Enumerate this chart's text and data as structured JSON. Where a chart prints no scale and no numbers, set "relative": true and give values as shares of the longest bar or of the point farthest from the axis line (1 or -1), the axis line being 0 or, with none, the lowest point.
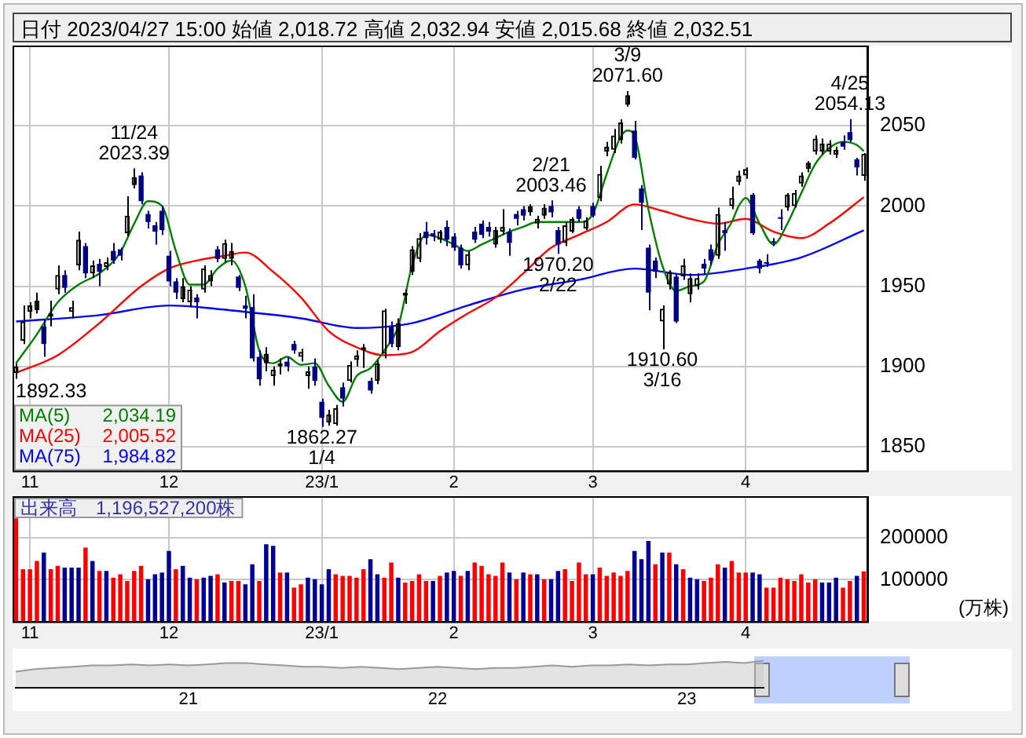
{
  "chart_data": [
    {
      "type": "candlestick",
      "title": "日付 2023/04/27 15:00 始値 2,018.72 高値 2,032.94 安値 2,015.68 終値 2,032.51",
      "categories": [
        null,
        null,
        "11",
        null,
        null,
        null,
        null,
        null,
        null,
        null,
        null,
        null,
        null,
        null,
        null,
        null,
        null,
        null,
        null,
        null,
        null,
        null,
        "12",
        null,
        null,
        null,
        null,
        null,
        null,
        null,
        null,
        null,
        null,
        null,
        null,
        null,
        null,
        null,
        null,
        null,
        null,
        null,
        null,
        null,
        "23/1",
        null,
        null,
        null,
        null,
        null,
        null,
        null,
        null,
        null,
        null,
        null,
        null,
        null,
        null,
        null,
        null,
        null,
        null,
        "2",
        null,
        null,
        null,
        null,
        null,
        null,
        null,
        null,
        null,
        null,
        null,
        null,
        null,
        null,
        null,
        null,
        null,
        null,
        null,
        "3",
        null,
        null,
        null,
        null,
        null,
        null,
        null,
        null,
        null,
        null,
        null,
        null,
        null,
        null,
        null,
        null,
        null,
        null,
        null,
        null,
        null,
        "4",
        null,
        null,
        null,
        null,
        null,
        null,
        null,
        null,
        null,
        null,
        null,
        null,
        null,
        null,
        null,
        null,
        null
      ],
      "ohlc": [
        [
          1896,
          1902,
          1892.33,
          1900
        ],
        [
          1916,
          1938,
          1914,
          1928
        ],
        [
          1934,
          1940,
          1930,
          1938
        ],
        [
          1935,
          1946,
          1933,
          1941
        ],
        [
          1925,
          1929,
          1906,
          1914
        ],
        [
          1931,
          1941,
          1925,
          1933
        ],
        [
          1948,
          1963,
          1945,
          1957
        ],
        [
          1957,
          1960,
          1946,
          1949
        ],
        [
          1934,
          1941,
          1930,
          1937
        ],
        [
          1963,
          1984,
          1960,
          1979
        ],
        [
          1975,
          1977,
          1955,
          1958
        ],
        [
          1958,
          1966,
          1955,
          1963
        ],
        [
          1964,
          1967,
          1950,
          1959
        ],
        [
          1962,
          1968,
          1960,
          1965
        ],
        [
          1972,
          1977,
          1964,
          1966
        ],
        [
          1973,
          1974,
          1966,
          1969
        ],
        [
          1983,
          2006,
          1981,
          1994
        ],
        [
          2013,
          2023.39,
          2011,
          2018
        ],
        [
          2019,
          2021,
          2001,
          2003
        ],
        [
          1995,
          1997,
          1986,
          1990
        ],
        [
          1988,
          1990,
          1976,
          1984
        ],
        [
          1997,
          2000,
          1982,
          1985
        ],
        [
          1969,
          1972,
          1950,
          1953
        ],
        [
          1953,
          1955,
          1942,
          1946
        ],
        [
          1942,
          1955,
          1940,
          1950
        ],
        [
          1940,
          1950,
          1937,
          1948
        ],
        [
          1943,
          1945,
          1930,
          1940
        ],
        [
          1948,
          1963,
          1946,
          1961
        ],
        [
          1953,
          1960,
          1950,
          1957
        ],
        [
          1973,
          1975,
          1965,
          1967
        ],
        [
          1967,
          1979,
          1965,
          1977
        ],
        [
          1967,
          1977,
          1963,
          1972
        ],
        [
          1956,
          1957,
          1947,
          1949
        ],
        [
          1938,
          1944,
          1930,
          1936
        ],
        [
          1937,
          1945,
          1903,
          1905
        ],
        [
          1906,
          1910,
          1888,
          1892
        ],
        [
          1902,
          1912,
          1897,
          1908
        ],
        [
          1894,
          1900,
          1888,
          1898
        ],
        [
          1900,
          1905,
          1895,
          1902
        ],
        [
          1903,
          1906,
          1897,
          1900
        ],
        [
          1914,
          1916,
          1908,
          1910
        ],
        [
          1906,
          1911,
          1903,
          1909
        ],
        [
          1894,
          1900,
          1886,
          1897
        ],
        [
          1900,
          1905,
          1888,
          1891
        ],
        [
          1878,
          1880,
          1862.27,
          1868
        ],
        [
          1865,
          1873,
          1863,
          1870
        ],
        [
          1864,
          1876,
          1863,
          1874
        ],
        [
          1887,
          1890,
          1875,
          1880
        ],
        [
          1891,
          1903,
          1890,
          1901
        ],
        [
          1904,
          1910,
          1900,
          1907
        ],
        [
          1910,
          1914,
          1899,
          1912
        ],
        [
          1891,
          1893,
          1883,
          1885
        ],
        [
          1891,
          1904,
          1889,
          1902
        ],
        [
          1908,
          1936,
          1905,
          1935
        ],
        [
          1925,
          1928,
          1912,
          1914
        ],
        [
          1912,
          1930,
          1910,
          1927
        ],
        [
          1944,
          1948,
          1939,
          1946
        ],
        [
          1959,
          1975,
          1957,
          1973
        ],
        [
          1967,
          1983,
          1965,
          1980
        ],
        [
          1984,
          1990,
          1976,
          1980
        ],
        [
          1983,
          1985,
          1978,
          1981
        ],
        [
          1979,
          1985,
          1977,
          1984
        ],
        [
          1987,
          1991,
          1975,
          1979
        ],
        [
          1981,
          1983,
          1972,
          1974
        ],
        [
          1974,
          1976,
          1961,
          1963
        ],
        [
          1963,
          1972,
          1960,
          1970
        ],
        [
          1984,
          1987,
          1977,
          1979
        ],
        [
          1989,
          1991,
          1980,
          1982
        ],
        [
          1987,
          1990,
          1981,
          1984
        ],
        [
          1976,
          1987,
          1974,
          1985
        ],
        [
          1984,
          1998,
          1982,
          1987
        ],
        [
          1984,
          1986,
          1969,
          1977
        ],
        [
          1995,
          1997,
          1988,
          1992
        ],
        [
          1998,
          2000,
          1991,
          1994
        ],
        [
          1996,
          2001,
          1994,
          2000
        ],
        [
          1989,
          1994,
          1986,
          1992
        ],
        [
          1994,
          2001,
          1992,
          1999
        ],
        [
          2000,
          2003.46,
          1993,
          1996
        ],
        [
          1985,
          1987,
          1970.2,
          1976
        ],
        [
          1977,
          1990,
          1975,
          1988
        ],
        [
          1984,
          1993,
          1983,
          1992
        ],
        [
          1998,
          2000,
          1990,
          1992
        ],
        [
          1986,
          1993,
          1985,
          1991
        ],
        [
          2000,
          2002,
          1993,
          1994
        ],
        [
          2005,
          2025,
          2003,
          2020
        ],
        [
          2034,
          2040,
          2031,
          2037
        ],
        [
          2035,
          2048,
          2033,
          2044
        ],
        [
          2041,
          2054,
          2039,
          2052
        ],
        [
          2063,
          2071.6,
          2062,
          2069
        ],
        [
          2047,
          2053,
          2029,
          2030
        ],
        [
          2011,
          2013,
          1985,
          2002
        ],
        [
          1974,
          1976,
          1935,
          1946
        ],
        [
          1966,
          1968,
          1955,
          1959
        ],
        [
          1928,
          1938,
          1910.6,
          1936
        ],
        [
          1951,
          1960,
          1948,
          1959
        ],
        [
          1956,
          1958,
          1927,
          1928
        ],
        [
          1956,
          1967,
          1954,
          1963
        ],
        [
          1945,
          1958,
          1940,
          1955
        ],
        [
          1950,
          1958,
          1948,
          1955
        ],
        [
          1964,
          1967,
          1957,
          1961
        ],
        [
          1973,
          1976,
          1963,
          1966
        ],
        [
          1969,
          1999,
          1967,
          1995
        ],
        [
          1985,
          1990,
          1972,
          1983
        ],
        [
          2000,
          2012,
          1998,
          2005
        ],
        [
          2015,
          2022,
          2013,
          2019
        ],
        [
          2019,
          2024,
          2017,
          2023
        ],
        [
          2007,
          2008,
          1982,
          1983
        ],
        [
          1966,
          1967,
          1958,
          1961
        ],
        [
          1965,
          1970,
          1962,
          1964
        ],
        [
          1978,
          1980,
          1975,
          1977
        ],
        [
          1993,
          1998,
          1985,
          1992
        ],
        [
          1999,
          2008,
          1997,
          2007
        ],
        [
          2000,
          2010,
          1999,
          2008
        ],
        [
          2014,
          2021,
          2012,
          2019
        ],
        [
          2023,
          2028,
          2021,
          2027
        ],
        [
          2034,
          2044,
          2032,
          2042
        ],
        [
          2034,
          2042,
          2032,
          2039
        ],
        [
          2034,
          2041,
          2032,
          2039
        ],
        [
          2032,
          2037,
          2030,
          2035
        ],
        [
          2040,
          2044,
          2035,
          2037
        ],
        [
          2046,
          2054.13,
          2040,
          2041
        ],
        [
          2029,
          2030,
          2019,
          2024
        ],
        [
          2018.72,
          2032.94,
          2015.68,
          2032.51
        ]
      ],
      "colors": [
        "#000000",
        "#000000",
        "#000000",
        "#000000",
        "#000080",
        "#000000",
        "#000000",
        "#000080",
        "#000000",
        "#000000",
        "#000080",
        "#000000",
        "#000080",
        "#000000",
        "#000080",
        "#000080",
        "#000000",
        "#000000",
        "#000080",
        "#000080",
        "#000080",
        "#000080",
        "#000080",
        "#000080",
        "#000000",
        "#000000",
        "#000080",
        "#000000",
        "#000000",
        "#000080",
        "#000000",
        "#000000",
        "#000080",
        "#000080",
        "#000080",
        "#000080",
        "#000000",
        "#000000",
        "#000000",
        "#000080",
        "#000080",
        "#000000",
        "#000000",
        "#000080",
        "#000080",
        "#000000",
        "#000000",
        "#000080",
        "#000000",
        "#000000",
        "#000000",
        "#000080",
        "#000000",
        "#000000",
        "#000080",
        "#000000",
        "#000000",
        "#000000",
        "#000000",
        "#000080",
        "#000080",
        "#000000",
        "#000080",
        "#000080",
        "#000080",
        "#000000",
        "#000080",
        "#000080",
        "#000080",
        "#000000",
        "#000000",
        "#000080",
        "#000080",
        "#000080",
        "#000000",
        "#000000",
        "#000000",
        "#000080",
        "#000080",
        "#000000",
        "#000000",
        "#000080",
        "#000000",
        "#000080",
        "#000000",
        "#000000",
        "#000000",
        "#000000",
        "#000000",
        "#000080",
        "#000080",
        "#000080",
        "#000080",
        "#000000",
        "#000000",
        "#000080",
        "#000000",
        "#000000",
        "#000000",
        "#000080",
        "#000080",
        "#000000",
        "#000080",
        "#000000",
        "#000000",
        "#000000",
        "#000080",
        "#000080",
        "#000080",
        "#000080",
        "#000080",
        "#000000",
        "#000000",
        "#000000",
        "#000000",
        "#000000",
        "#000000",
        "#000000",
        "#000000",
        "#000080",
        "#000080",
        "#000080",
        "#000000"
      ],
      "series": [
        {
          "type": "line",
          "name": "MA(5)",
          "color": "#008000",
          "values": [
            1902,
            null,
            null,
            1920,
            null,
            null,
            1940,
            null,
            null,
            1951,
            null,
            null,
            1958,
            null,
            null,
            1971,
            null,
            1989,
            null,
            2003,
            null,
            2000,
            null,
            1972,
            null,
            1951,
            null,
            1951,
            null,
            1961,
            null,
            1966,
            null,
            1950,
            null,
            1910,
            null,
            1902,
            null,
            1906,
            null,
            1901,
            null,
            1902,
            null,
            1888,
            null,
            1878,
            null,
            1894,
            null,
            1899,
            null,
            1910,
            null,
            1925,
            null,
            1963,
            null,
            1982,
            null,
            1980,
            null,
            1976,
            null,
            1972,
            null,
            1976,
            null,
            1980,
            null,
            1984,
            null,
            1987,
            null,
            1990,
            null,
            1990,
            null,
            1990,
            null,
            1990,
            null,
            1995,
            null,
            2020,
            null,
            2043,
            2047,
            2044,
            null,
            1998,
            null,
            1963,
            null,
            1947,
            null,
            1950,
            null,
            1953,
            null,
            1976,
            null,
            1990,
            2000,
            2005,
            null,
            1989,
            null,
            1976,
            null,
            1989,
            null,
            2008,
            null,
            2026,
            null,
            2036,
            null,
            2040,
            null,
            2038,
            2034.19
          ]
        },
        {
          "type": "line",
          "name": "MA(25)",
          "color": "#ff0000",
          "values": [
            1896,
            null,
            null,
            null,
            null,
            null,
            1907,
            null,
            null,
            null,
            null,
            null,
            1927,
            null,
            null,
            null,
            null,
            null,
            1950,
            null,
            null,
            null,
            1961,
            null,
            null,
            null,
            1966,
            null,
            null,
            null,
            1969,
            null,
            null,
            1971,
            null,
            null,
            null,
            1959,
            null,
            null,
            null,
            1943,
            null,
            null,
            null,
            1922,
            null,
            null,
            null,
            1912,
            null,
            null,
            null,
            1907,
            null,
            null,
            null,
            1909,
            null,
            null,
            null,
            1922,
            null,
            null,
            null,
            1933,
            null,
            null,
            null,
            1943,
            null,
            null,
            null,
            1958,
            null,
            null,
            null,
            1974,
            null,
            null,
            null,
            1982,
            null,
            null,
            null,
            1990,
            null,
            null,
            null,
            2001,
            null,
            null,
            null,
            1997,
            null,
            null,
            null,
            1992,
            null,
            null,
            null,
            1989,
            null,
            null,
            null,
            1992,
            null,
            null,
            null,
            1984,
            null,
            null,
            null,
            1980,
            null,
            null,
            null,
            1989,
            null,
            null,
            null,
            null,
            2005.52
          ]
        },
        {
          "type": "line",
          "name": "MA(75)",
          "color": "#0000ff",
          "values": [
            1928,
            null,
            null,
            null,
            null,
            null,
            null,
            null,
            null,
            null,
            null,
            null,
            1932,
            null,
            null,
            null,
            null,
            null,
            null,
            null,
            null,
            null,
            1938,
            null,
            null,
            null,
            null,
            null,
            null,
            null,
            null,
            null,
            null,
            1934,
            null,
            null,
            null,
            null,
            null,
            null,
            null,
            1930,
            null,
            null,
            null,
            null,
            null,
            null,
            null,
            1924,
            null,
            null,
            null,
            null,
            null,
            null,
            null,
            1927,
            null,
            null,
            null,
            null,
            null,
            null,
            null,
            1938,
            null,
            null,
            null,
            null,
            null,
            null,
            null,
            1948,
            null,
            null,
            null,
            null,
            null,
            null,
            null,
            1954,
            null,
            null,
            null,
            null,
            null,
            null,
            null,
            1961,
            null,
            null,
            null,
            null,
            null,
            null,
            null,
            1957,
            null,
            null,
            null,
            null,
            null,
            null,
            null,
            1961,
            null,
            null,
            null,
            null,
            null,
            null,
            null,
            1968,
            null,
            null,
            null,
            null,
            null,
            null,
            null,
            null,
            1984.82
          ]
        }
      ],
      "ylim": [
        1835,
        2100
      ],
      "yticks": [
        1850,
        1900,
        1950,
        2000,
        2050
      ],
      "grid": true,
      "legend": "bottom left",
      "marker": "none",
      "annotations": [
        {
          "text": "11/24\n2023.39",
          "y": 2023.39
        },
        {
          "text": "1862.27\n1/4",
          "y": 1862.27
        },
        {
          "text": "2/21\n2003.46",
          "y": 2003.46
        },
        {
          "text": "1970.20\n2/22",
          "y": 1970.2
        },
        {
          "text": "3/9\n2071.60",
          "y": 2071.6
        },
        {
          "text": "1910.60\n3/16",
          "y": 1910.6
        },
        {
          "text": "4/25\n2054.13",
          "y": 2054.13
        },
        "1892.33",
        "2,034.19",
        "2,005.52",
        "1,984.82"
      ]
    },
    {
      "type": "bar",
      "title": "出来高　1,196,527,200株",
      "ylabel": "(万株)",
      "categories": [
        null,
        null,
        "11",
        null,
        null,
        null,
        null,
        null,
        null,
        null,
        null,
        null,
        null,
        null,
        null,
        null,
        null,
        null,
        null,
        null,
        null,
        null,
        "12",
        null,
        null,
        null,
        null,
        null,
        null,
        null,
        null,
        null,
        null,
        null,
        null,
        null,
        null,
        null,
        null,
        null,
        null,
        null,
        null,
        null,
        "23/1",
        null,
        null,
        null,
        null,
        null,
        null,
        null,
        null,
        null,
        null,
        null,
        null,
        null,
        null,
        null,
        null,
        null,
        null,
        "2",
        null,
        null,
        null,
        null,
        null,
        null,
        null,
        null,
        null,
        null,
        null,
        null,
        null,
        null,
        null,
        null,
        null,
        null,
        null,
        "3",
        null,
        null,
        null,
        null,
        null,
        null,
        null,
        null,
        null,
        null,
        null,
        null,
        null,
        null,
        null,
        null,
        null,
        null,
        null,
        null,
        null,
        "4",
        null,
        null,
        null,
        null,
        null,
        null,
        null,
        null,
        null,
        null,
        null,
        null,
        null,
        null,
        null,
        null,
        null
      ],
      "values": [
        247000,
        125000,
        125000,
        145000,
        165000,
        125000,
        133000,
        129000,
        129000,
        129000,
        177000,
        145000,
        121000,
        121000,
        105000,
        113000,
        97000,
        121000,
        133000,
        101000,
        113000,
        117000,
        169000,
        125000,
        133000,
        105000,
        101000,
        105000,
        109000,
        113000,
        93000,
        97000,
        97000,
        89000,
        137000,
        97000,
        185000,
        181000,
        117000,
        117000,
        81000,
        89000,
        105000,
        101000,
        89000,
        125000,
        113000,
        109000,
        109000,
        105000,
        125000,
        149000,
        113000,
        105000,
        141000,
        105000,
        93000,
        97000,
        113000,
        97000,
        97000,
        109000,
        117000,
        121000,
        109000,
        121000,
        141000,
        133000,
        113000,
        109000,
        141000,
        117000,
        101000,
        117000,
        113000,
        113000,
        101000,
        101000,
        121000,
        125000,
        97000,
        141000,
        113000,
        113000,
        129000,
        109000,
        117000,
        109000,
        121000,
        169000,
        149000,
        193000,
        137000,
        165000,
        165000,
        137000,
        125000,
        105000,
        101000,
        97000,
        105000,
        137000,
        129000,
        145000,
        117000,
        117000,
        117000,
        113000,
        81000,
        81000,
        105000,
        101000,
        97000,
        113000,
        93000,
        101000,
        93000,
        93000,
        105000,
        81000,
        97000,
        109000,
        120000
      ],
      "colors": [
        "#ff0000",
        "#ff0000",
        "#ff0000",
        "#ff0000",
        "#000099",
        "#ff0000",
        "#ff0000",
        "#000099",
        "#000099",
        "#000099",
        "#ff0000",
        "#000099",
        "#ff0000",
        "#000099",
        "#ff0000",
        "#ff0000",
        "#ff0000",
        "#ff0000",
        "#ff0000",
        "#000099",
        "#000099",
        "#000099",
        "#000099",
        "#ff0000",
        "#000099",
        "#000099",
        "#ff0000",
        "#000099",
        "#000099",
        "#ff0000",
        "#000099",
        "#ff0000",
        "#ff0000",
        "#000099",
        "#000099",
        "#ff0000",
        "#000099",
        "#000099",
        "#ff0000",
        "#000099",
        "#ff0000",
        "#ff0000",
        "#000099",
        "#000099",
        "#000099",
        "#000099",
        "#ff0000",
        "#ff0000",
        "#ff0000",
        "#ff0000",
        "#ff0000",
        "#000099",
        "#000099",
        "#ff0000",
        "#ff0000",
        "#000099",
        "#ff0000",
        "#ff0000",
        "#ff0000",
        "#ff0000",
        "#000099",
        "#ff0000",
        "#000099",
        "#000099",
        "#ff0000",
        "#000099",
        "#ff0000",
        "#ff0000",
        "#ff0000",
        "#ff0000",
        "#ff0000",
        "#000099",
        "#ff0000",
        "#000099",
        "#ff0000",
        "#000099",
        "#ff0000",
        "#000099",
        "#000099",
        "#ff0000",
        "#ff0000",
        "#ff0000",
        "#ff0000",
        "#000099",
        "#ff0000",
        "#ff0000",
        "#ff0000",
        "#ff0000",
        "#ff0000",
        "#000099",
        "#000099",
        "#000099",
        "#ff0000",
        "#000099",
        "#ff0000",
        "#000099",
        "#ff0000",
        "#000099",
        "#000099",
        "#ff0000",
        "#ff0000",
        "#ff0000",
        "#000099",
        "#ff0000",
        "#ff0000",
        "#ff0000",
        "#000099",
        "#000099",
        "#ff0000",
        "#ff0000",
        "#ff0000",
        "#ff0000",
        "#ff0000",
        "#ff0000",
        "#ff0000",
        "#ff0000",
        "#000099",
        "#000099",
        "#000099",
        "#ff0000",
        "#ff0000",
        "#000099",
        "#ff0000"
      ],
      "ylim": [
        0,
        300000
      ],
      "yticks": [
        100000,
        200000
      ],
      "grid": true
    },
    {
      "type": "area",
      "relative": true,
      "color": "#999999",
      "categories": [
        null,
        null,
        null,
        null,
        null,
        null,
        null,
        null,
        null,
        "21",
        null,
        null,
        null,
        null,
        null,
        null,
        null,
        null,
        null,
        null,
        null,
        null,
        "22",
        null,
        null,
        null,
        null,
        null,
        null,
        null,
        null,
        null,
        null,
        null,
        null,
        "23",
        null,
        null,
        null,
        null
      ],
      "values": [
        0.59,
        0.68,
        0.73,
        0.77,
        0.82,
        0.82,
        0.86,
        0.82,
        0.86,
        0.82,
        0.86,
        0.91,
        0.91,
        0.86,
        0.82,
        0.77,
        0.77,
        0.73,
        0.77,
        0.73,
        0.68,
        0.73,
        0.77,
        0.73,
        0.68,
        0.73,
        0.73,
        0.77,
        0.82,
        0.77,
        0.82,
        0.82,
        0.86,
        0.82,
        0.86,
        0.86,
        0.91,
        0.95,
        0.91,
        1
      ]
    }
  ]
}
